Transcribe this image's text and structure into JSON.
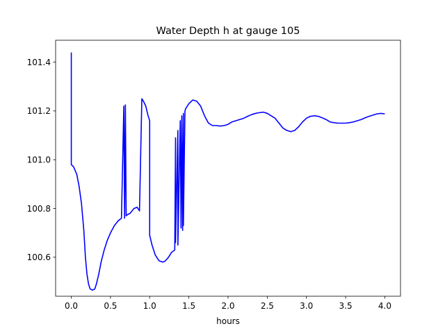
{
  "chart_data": {
    "type": "line",
    "title": "Water Depth h at gauge 105",
    "xlabel": "hours",
    "ylabel": "",
    "xlim": [
      -0.2,
      4.2
    ],
    "ylim": [
      100.44,
      101.49
    ],
    "xticks": [
      0.0,
      0.5,
      1.0,
      1.5,
      2.0,
      2.5,
      3.0,
      3.5,
      4.0
    ],
    "xtick_labels": [
      "0.0",
      "0.5",
      "1.0",
      "1.5",
      "2.0",
      "2.5",
      "3.0",
      "3.5",
      "4.0"
    ],
    "yticks": [
      100.6,
      100.8,
      101.0,
      101.2,
      101.4
    ],
    "ytick_labels": [
      "100.6",
      "100.8",
      "101.0",
      "101.2",
      "101.4"
    ],
    "grid": false,
    "color": "#0000ff",
    "series": [
      {
        "x": [
          0.0,
          0.0,
          0.03,
          0.07,
          0.1,
          0.13,
          0.16,
          0.18,
          0.2,
          0.22,
          0.24,
          0.27,
          0.3,
          0.32,
          0.35,
          0.38,
          0.42,
          0.46,
          0.5,
          0.55,
          0.6,
          0.64,
          0.67,
          0.68,
          0.69,
          0.7,
          0.7,
          0.72,
          0.75,
          0.8,
          0.84,
          0.87,
          0.9,
          0.9,
          0.92,
          0.95,
          0.98,
          1.0,
          1.0,
          1.03,
          1.07,
          1.12,
          1.17,
          1.2,
          1.24,
          1.28,
          1.32,
          1.33,
          1.33,
          1.36,
          1.36,
          1.39,
          1.4,
          1.41,
          1.42,
          1.43,
          1.43,
          1.45,
          1.45,
          1.46,
          1.46,
          1.5,
          1.55,
          1.6,
          1.65,
          1.7,
          1.75,
          1.8,
          1.85,
          1.9,
          1.95,
          2.0,
          2.05,
          2.1,
          2.15,
          2.2,
          2.25,
          2.3,
          2.35,
          2.4,
          2.45,
          2.5,
          2.55,
          2.6,
          2.65,
          2.7,
          2.75,
          2.8,
          2.85,
          2.9,
          2.95,
          3.0,
          3.05,
          3.1,
          3.15,
          3.2,
          3.25,
          3.3,
          3.35,
          3.4,
          3.45,
          3.5,
          3.55,
          3.6,
          3.65,
          3.7,
          3.75,
          3.8,
          3.85,
          3.9,
          3.95,
          4.0
        ],
        "y": [
          101.44,
          100.98,
          100.97,
          100.94,
          100.89,
          100.82,
          100.71,
          100.6,
          100.53,
          100.49,
          100.47,
          100.465,
          100.47,
          100.49,
          100.53,
          100.58,
          100.63,
          100.67,
          100.7,
          100.73,
          100.75,
          100.76,
          101.22,
          100.76,
          101.225,
          100.77,
          100.77,
          100.775,
          100.78,
          100.8,
          100.805,
          100.79,
          101.25,
          101.25,
          101.24,
          101.22,
          101.18,
          101.16,
          100.69,
          100.65,
          100.61,
          100.585,
          100.58,
          100.585,
          100.6,
          100.62,
          100.63,
          101.09,
          100.66,
          101.12,
          100.65,
          101.16,
          100.72,
          101.18,
          100.71,
          101.19,
          100.73,
          101.2,
          101.2,
          101.21,
          101.21,
          101.23,
          101.245,
          101.24,
          101.22,
          101.18,
          101.15,
          101.14,
          101.14,
          101.138,
          101.14,
          101.145,
          101.155,
          101.16,
          101.165,
          101.17,
          101.178,
          101.185,
          101.19,
          101.193,
          101.195,
          101.19,
          101.18,
          101.17,
          101.15,
          101.13,
          101.12,
          101.115,
          101.12,
          101.135,
          101.155,
          101.17,
          101.178,
          101.18,
          101.178,
          101.172,
          101.165,
          101.155,
          101.152,
          101.15,
          101.15,
          101.15,
          101.152,
          101.155,
          101.16,
          101.165,
          101.172,
          101.178,
          101.183,
          101.188,
          101.19,
          101.188
        ]
      }
    ]
  }
}
